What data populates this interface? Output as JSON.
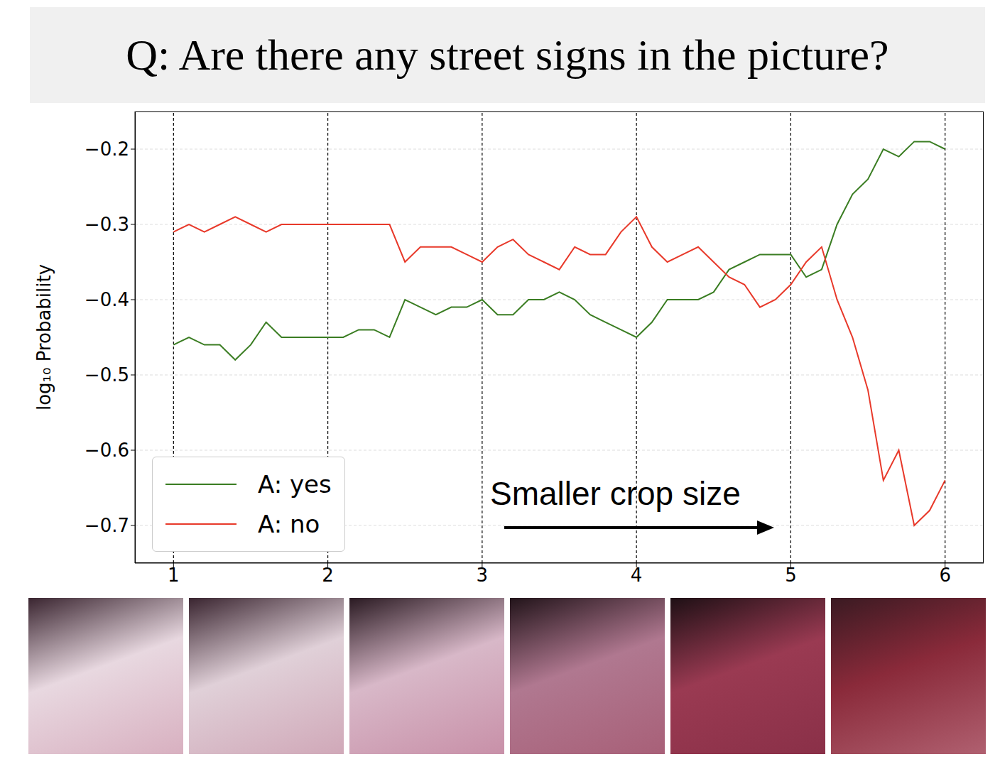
{
  "chart_data": {
    "type": "line",
    "title": "Q: Are there any street signs in the picture?",
    "y_label": "log₁₀ Probability",
    "annotation": "Smaller crop size",
    "x": [
      1.0,
      1.1,
      1.2,
      1.3,
      1.4,
      1.5,
      1.6,
      1.7,
      1.8,
      1.9,
      2.0,
      2.1,
      2.2,
      2.3,
      2.4,
      2.5,
      2.6,
      2.7,
      2.8,
      2.9,
      3.0,
      3.1,
      3.2,
      3.3,
      3.4,
      3.5,
      3.6,
      3.7,
      3.8,
      3.9,
      4.0,
      4.1,
      4.2,
      4.3,
      4.4,
      4.5,
      4.6,
      4.7,
      4.8,
      4.9,
      5.0,
      5.1,
      5.2,
      5.3,
      5.4,
      5.5,
      5.6,
      5.7,
      5.8,
      5.9,
      6.0
    ],
    "series": [
      {
        "name": "A: yes",
        "color": "#3a7d22",
        "values": [
          -0.46,
          -0.45,
          -0.46,
          -0.46,
          -0.48,
          -0.46,
          -0.43,
          -0.45,
          -0.45,
          -0.45,
          -0.45,
          -0.45,
          -0.44,
          -0.44,
          -0.45,
          -0.4,
          -0.41,
          -0.42,
          -0.41,
          -0.41,
          -0.4,
          -0.42,
          -0.42,
          -0.4,
          -0.4,
          -0.39,
          -0.4,
          -0.42,
          -0.43,
          -0.44,
          -0.45,
          -0.43,
          -0.4,
          -0.4,
          -0.4,
          -0.39,
          -0.36,
          -0.35,
          -0.34,
          -0.34,
          -0.34,
          -0.37,
          -0.36,
          -0.3,
          -0.26,
          -0.24,
          -0.2,
          -0.21,
          -0.19,
          -0.19,
          -0.2
        ]
      },
      {
        "name": "A: no",
        "color": "#e8392a",
        "values": [
          -0.31,
          -0.3,
          -0.31,
          -0.3,
          -0.29,
          -0.3,
          -0.31,
          -0.3,
          -0.3,
          -0.3,
          -0.3,
          -0.3,
          -0.3,
          -0.3,
          -0.3,
          -0.35,
          -0.33,
          -0.33,
          -0.33,
          -0.34,
          -0.35,
          -0.33,
          -0.32,
          -0.34,
          -0.35,
          -0.36,
          -0.33,
          -0.34,
          -0.34,
          -0.31,
          -0.29,
          -0.33,
          -0.35,
          -0.34,
          -0.33,
          -0.35,
          -0.37,
          -0.38,
          -0.41,
          -0.4,
          -0.38,
          -0.35,
          -0.33,
          -0.4,
          -0.45,
          -0.52,
          -0.64,
          -0.6,
          -0.7,
          -0.68,
          -0.64
        ]
      }
    ],
    "xlim": [
      0.75,
      6.25
    ],
    "xticks": [
      1,
      2,
      3,
      4,
      5,
      6
    ],
    "ylim": [
      -0.75,
      -0.15
    ],
    "yticks": [
      {
        "value": -0.7,
        "label": "−0.7"
      },
      {
        "value": -0.6,
        "label": "−0.6"
      },
      {
        "value": -0.5,
        "label": "−0.5"
      },
      {
        "value": -0.4,
        "label": "−0.4"
      },
      {
        "value": -0.3,
        "label": "−0.3"
      },
      {
        "value": -0.2,
        "label": "−0.2"
      }
    ],
    "grid": true,
    "legend": "lower left"
  }
}
